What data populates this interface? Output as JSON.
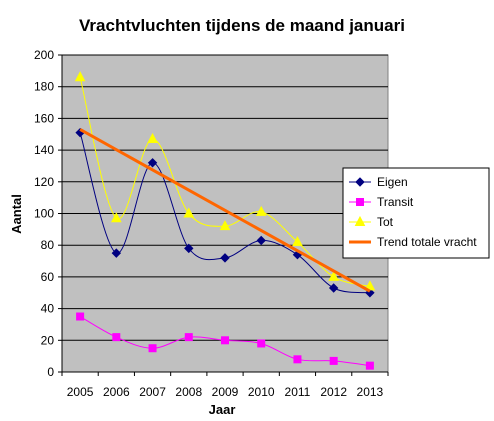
{
  "chart_data": {
    "type": "line",
    "title": "Vrachtvluchten tijdens de maand januari",
    "xlabel": "Jaar",
    "ylabel": "Aantal",
    "categories": [
      "2005",
      "2006",
      "2007",
      "2008",
      "2009",
      "2010",
      "2011",
      "2012",
      "2013"
    ],
    "ylim": [
      0,
      200
    ],
    "yticks": [
      0,
      20,
      40,
      60,
      80,
      100,
      120,
      140,
      160,
      180,
      200
    ],
    "grid": true,
    "plot_background": "#c0c0c0",
    "legend_position": "right",
    "series": [
      {
        "name": "Eigen",
        "values": [
          151,
          75,
          132,
          78,
          72,
          83,
          74,
          53,
          50
        ],
        "color": "#000080",
        "marker": "diamond",
        "smooth": true
      },
      {
        "name": "Transit",
        "values": [
          35,
          22,
          15,
          22,
          20,
          18,
          8,
          7,
          4
        ],
        "color": "#ff00ff",
        "marker": "square",
        "smooth": true
      },
      {
        "name": "Tot",
        "values": [
          186,
          97,
          147,
          100,
          92,
          101,
          82,
          60,
          54
        ],
        "color": "#ffff00",
        "marker": "triangle",
        "smooth": true
      },
      {
        "name": "Trend totale vracht",
        "values": [
          153,
          140.25,
          127.5,
          114.75,
          102,
          89.25,
          76.5,
          63.75,
          51
        ],
        "color": "#ff6600",
        "marker": "none",
        "smooth": false,
        "trend": true
      }
    ]
  }
}
